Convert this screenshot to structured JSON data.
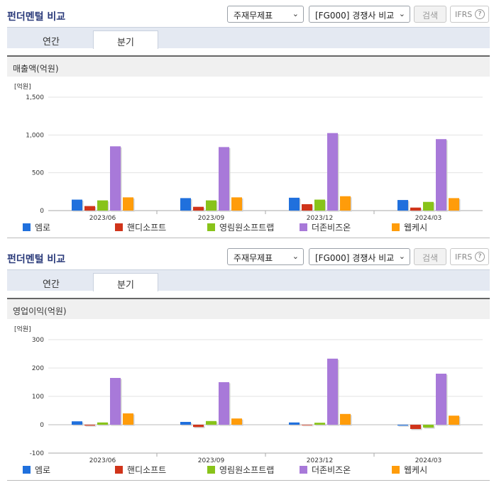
{
  "header": {
    "title": "펀더멘털 비교",
    "statement_select": "주재무제표",
    "peer_select": "[FG000] 경쟁사 비교",
    "search_label": "검색",
    "ifrs_label": "IFRS",
    "help_label": "?"
  },
  "tabs": {
    "annual": "연간",
    "quarter": "분기"
  },
  "colors": {
    "title": "#2a3a7a",
    "series": [
      "#2070dd",
      "#d0341a",
      "#88c31a",
      "#a879d9",
      "#ff9c0a"
    ]
  },
  "legend": [
    "엠로",
    "핸디소프트",
    "영림원소프트랩",
    "더존비즈온",
    "웹케시"
  ],
  "charts": [
    {
      "heading": "매출액(억원)"
    },
    {
      "heading": "영업이익(억원)"
    }
  ],
  "chart_data": [
    {
      "type": "bar",
      "title": "매출액(억원)",
      "unit_label": "[억원]",
      "categories": [
        "2023/06",
        "2023/09",
        "2023/12",
        "2024/03"
      ],
      "ylim": [
        0,
        1500
      ],
      "yticks": [
        0,
        500,
        1000,
        1500
      ],
      "ytick_labels": [
        "0",
        "500",
        "1,000",
        "1,500"
      ],
      "series": [
        {
          "name": "엠로",
          "values": [
            145,
            165,
            170,
            140
          ]
        },
        {
          "name": "핸디소프트",
          "values": [
            60,
            50,
            85,
            40
          ]
        },
        {
          "name": "영림원소프트랩",
          "values": [
            135,
            135,
            145,
            115
          ]
        },
        {
          "name": "더존비즈온",
          "values": [
            850,
            840,
            1025,
            945
          ]
        },
        {
          "name": "웹케시",
          "values": [
            175,
            175,
            190,
            165
          ]
        }
      ],
      "grid": true,
      "legend_position": "bottom"
    },
    {
      "type": "bar",
      "title": "영업이익(억원)",
      "unit_label": "[억원]",
      "categories": [
        "2023/06",
        "2023/09",
        "2023/12",
        "2024/03"
      ],
      "ylim": [
        -100,
        300
      ],
      "yticks": [
        -100,
        0,
        100,
        200,
        300
      ],
      "ytick_labels": [
        "-100",
        "0",
        "100",
        "200",
        "300"
      ],
      "series": [
        {
          "name": "엠로",
          "values": [
            12,
            10,
            8,
            -3
          ]
        },
        {
          "name": "핸디소프트",
          "values": [
            -3,
            -8,
            -2,
            -15
          ]
        },
        {
          "name": "영림원소프트랩",
          "values": [
            8,
            13,
            7,
            -10
          ]
        },
        {
          "name": "더존비즈온",
          "values": [
            165,
            150,
            233,
            180
          ]
        },
        {
          "name": "웹케시",
          "values": [
            40,
            22,
            38,
            32
          ]
        }
      ],
      "grid": true,
      "legend_position": "bottom"
    }
  ]
}
